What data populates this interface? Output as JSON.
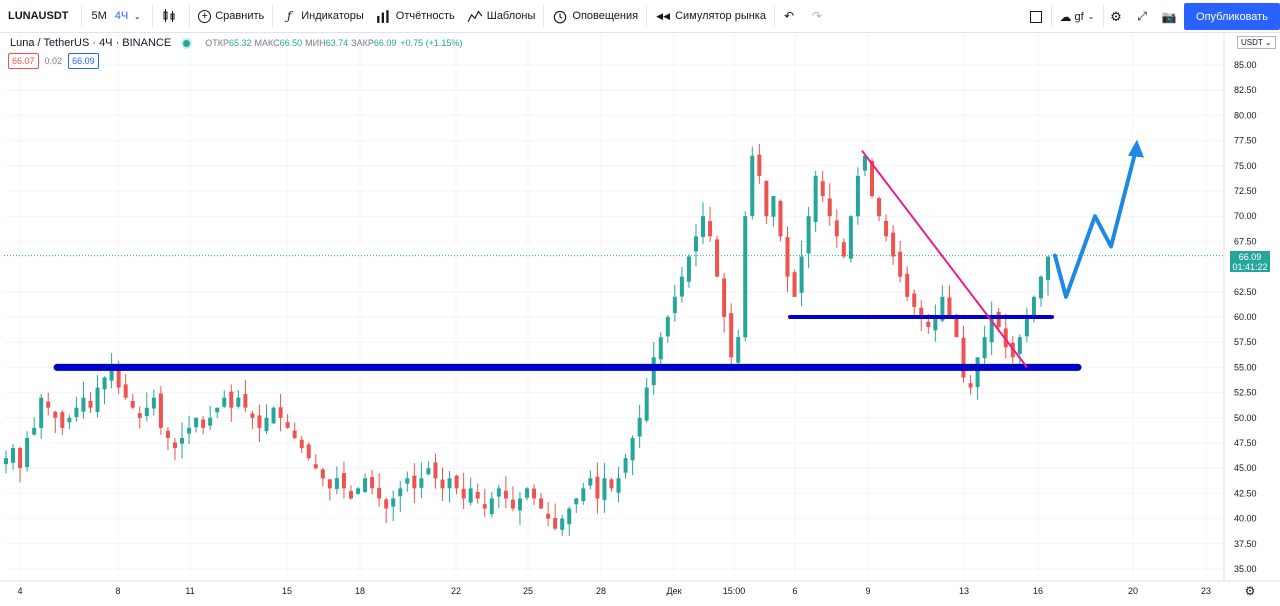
{
  "toolbar": {
    "symbol": "LUNAUSDT",
    "intervals": [
      "5М",
      "4Ч"
    ],
    "compare": "Сравнить",
    "indicators": "Индикаторы",
    "financials": "Отчётность",
    "templates": "Шаблоны",
    "alerts": "Оповещения",
    "replay": "Симулятор рынка",
    "layout_name": "gf",
    "publish": "Опубликовать"
  },
  "legend": {
    "title": "Luna / TetherUS · 4Ч · BINANCE",
    "open_label": "ОТКР",
    "open": "65.32",
    "high_label": "МАКС",
    "high": "66.50",
    "low_label": "МИН",
    "low": "63.74",
    "close_label": "ЗАКР",
    "close": "66.09",
    "change": "+0.75 (+1.15%)",
    "bid": "66.07",
    "spread": "0.02",
    "ask": "66.09"
  },
  "price_scale": {
    "currency": "USDT",
    "labels": [
      "85.00",
      "82.50",
      "80.00",
      "77.50",
      "75.00",
      "72.50",
      "70.00",
      "67.50",
      "62.50",
      "60.00",
      "57.50",
      "55.00",
      "52.50",
      "50.00",
      "47.50",
      "45.00",
      "42.50",
      "40.00",
      "37.50",
      "35.00"
    ],
    "last_price": "66.09",
    "countdown": "01:41:22"
  },
  "time_scale": {
    "labels": [
      "4",
      "8",
      "11",
      "15",
      "18",
      "22",
      "25",
      "28",
      "Дек",
      "15:00",
      "6",
      "9",
      "13",
      "16",
      "20",
      "23"
    ]
  },
  "colors": {
    "up": "#26a69a",
    "down": "#ef5350",
    "support_line": "#0000cc",
    "trend_line": "#e91e8c",
    "arrow": "#1e88e5",
    "accent": "#2962ff"
  },
  "chart_data": {
    "type": "candlestick",
    "symbol": "Luna / TetherUS",
    "interval": "4Ч",
    "exchange": "BINANCE",
    "ylim": [
      34,
      87
    ],
    "last_close": 66.09,
    "closes": [
      46,
      47,
      45,
      48,
      49,
      52,
      51,
      50,
      49,
      50,
      51,
      52,
      51,
      53,
      54,
      55,
      53,
      52,
      51,
      50,
      51,
      52,
      49,
      48,
      47,
      48,
      49,
      50,
      49,
      50,
      51,
      52,
      51,
      52,
      51,
      50,
      49,
      50,
      51,
      50,
      49,
      48,
      47,
      46,
      45,
      44,
      43,
      44,
      43,
      42,
      43,
      44,
      43,
      42,
      41,
      42,
      43,
      44,
      43,
      44,
      45,
      44,
      43,
      44,
      43,
      42,
      43,
      42,
      41,
      42,
      43,
      42,
      41,
      42,
      43,
      42,
      41,
      40,
      39,
      40,
      41,
      42,
      43,
      44,
      42,
      44,
      43,
      44,
      46,
      48,
      50,
      53,
      56,
      58,
      60,
      62,
      64,
      66,
      68,
      70,
      68,
      64,
      60,
      56,
      58,
      70,
      76,
      74,
      70,
      72,
      68,
      64,
      62,
      66,
      70,
      74,
      72,
      70,
      68,
      66,
      70,
      74,
      76,
      72,
      70,
      68,
      66,
      64,
      62,
      61,
      60,
      59,
      60,
      62,
      60,
      58,
      54,
      53,
      56,
      58,
      60,
      59,
      57,
      56,
      58,
      60,
      62,
      64,
      66
    ]
  },
  "annotations": {
    "support_levels": [
      55.0,
      60.0
    ],
    "trend_line": {
      "from": 76.5,
      "to": 55.0
    },
    "projected_path": [
      62.0,
      70.0,
      67.0,
      77.0
    ]
  }
}
